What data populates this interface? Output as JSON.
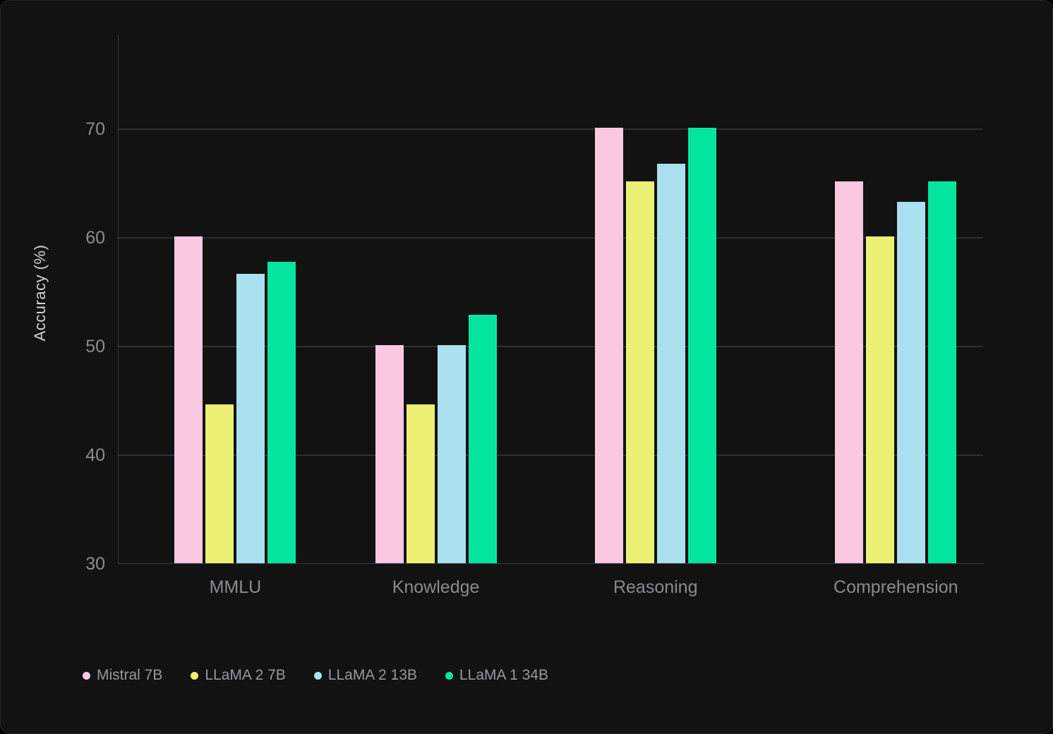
{
  "chart_data": {
    "type": "bar",
    "title": "",
    "xlabel": "",
    "ylabel": "Accuracy (%)",
    "categories": [
      "MMLU",
      "Knowledge",
      "Reasoning",
      "Comprehension"
    ],
    "series": [
      {
        "name": "Mistral 7B",
        "color": "#fbc8e2",
        "values": [
          60.1,
          50.1,
          70.1,
          65.2
        ]
      },
      {
        "name": "LLaMA 2 7B",
        "color": "#ecf174",
        "values": [
          44.7,
          44.7,
          65.2,
          60.1
        ]
      },
      {
        "name": "LLaMA 2 13B",
        "color": "#aadfef",
        "values": [
          56.7,
          50.1,
          66.8,
          63.3
        ]
      },
      {
        "name": "LLaMA 1 34B",
        "color": "#04e5a0",
        "values": [
          57.8,
          52.9,
          70.1,
          65.2
        ]
      }
    ],
    "yticks": [
      30,
      40,
      50,
      60,
      70
    ],
    "ylim": [
      30,
      78.7
    ],
    "grid": true,
    "legend_position": "bottom-left",
    "category_positions": [
      0.135,
      0.367,
      0.621,
      0.899
    ],
    "colors": {
      "page_background": "#000000",
      "card_background": "#121213",
      "gridline": "#2e2e33",
      "axis_line": "#3d3d43",
      "tick_label": "#8b8b93",
      "category_label": "#8a8a92",
      "axis_title": "#d2d2d7",
      "legend_text": "#97979f"
    }
  }
}
